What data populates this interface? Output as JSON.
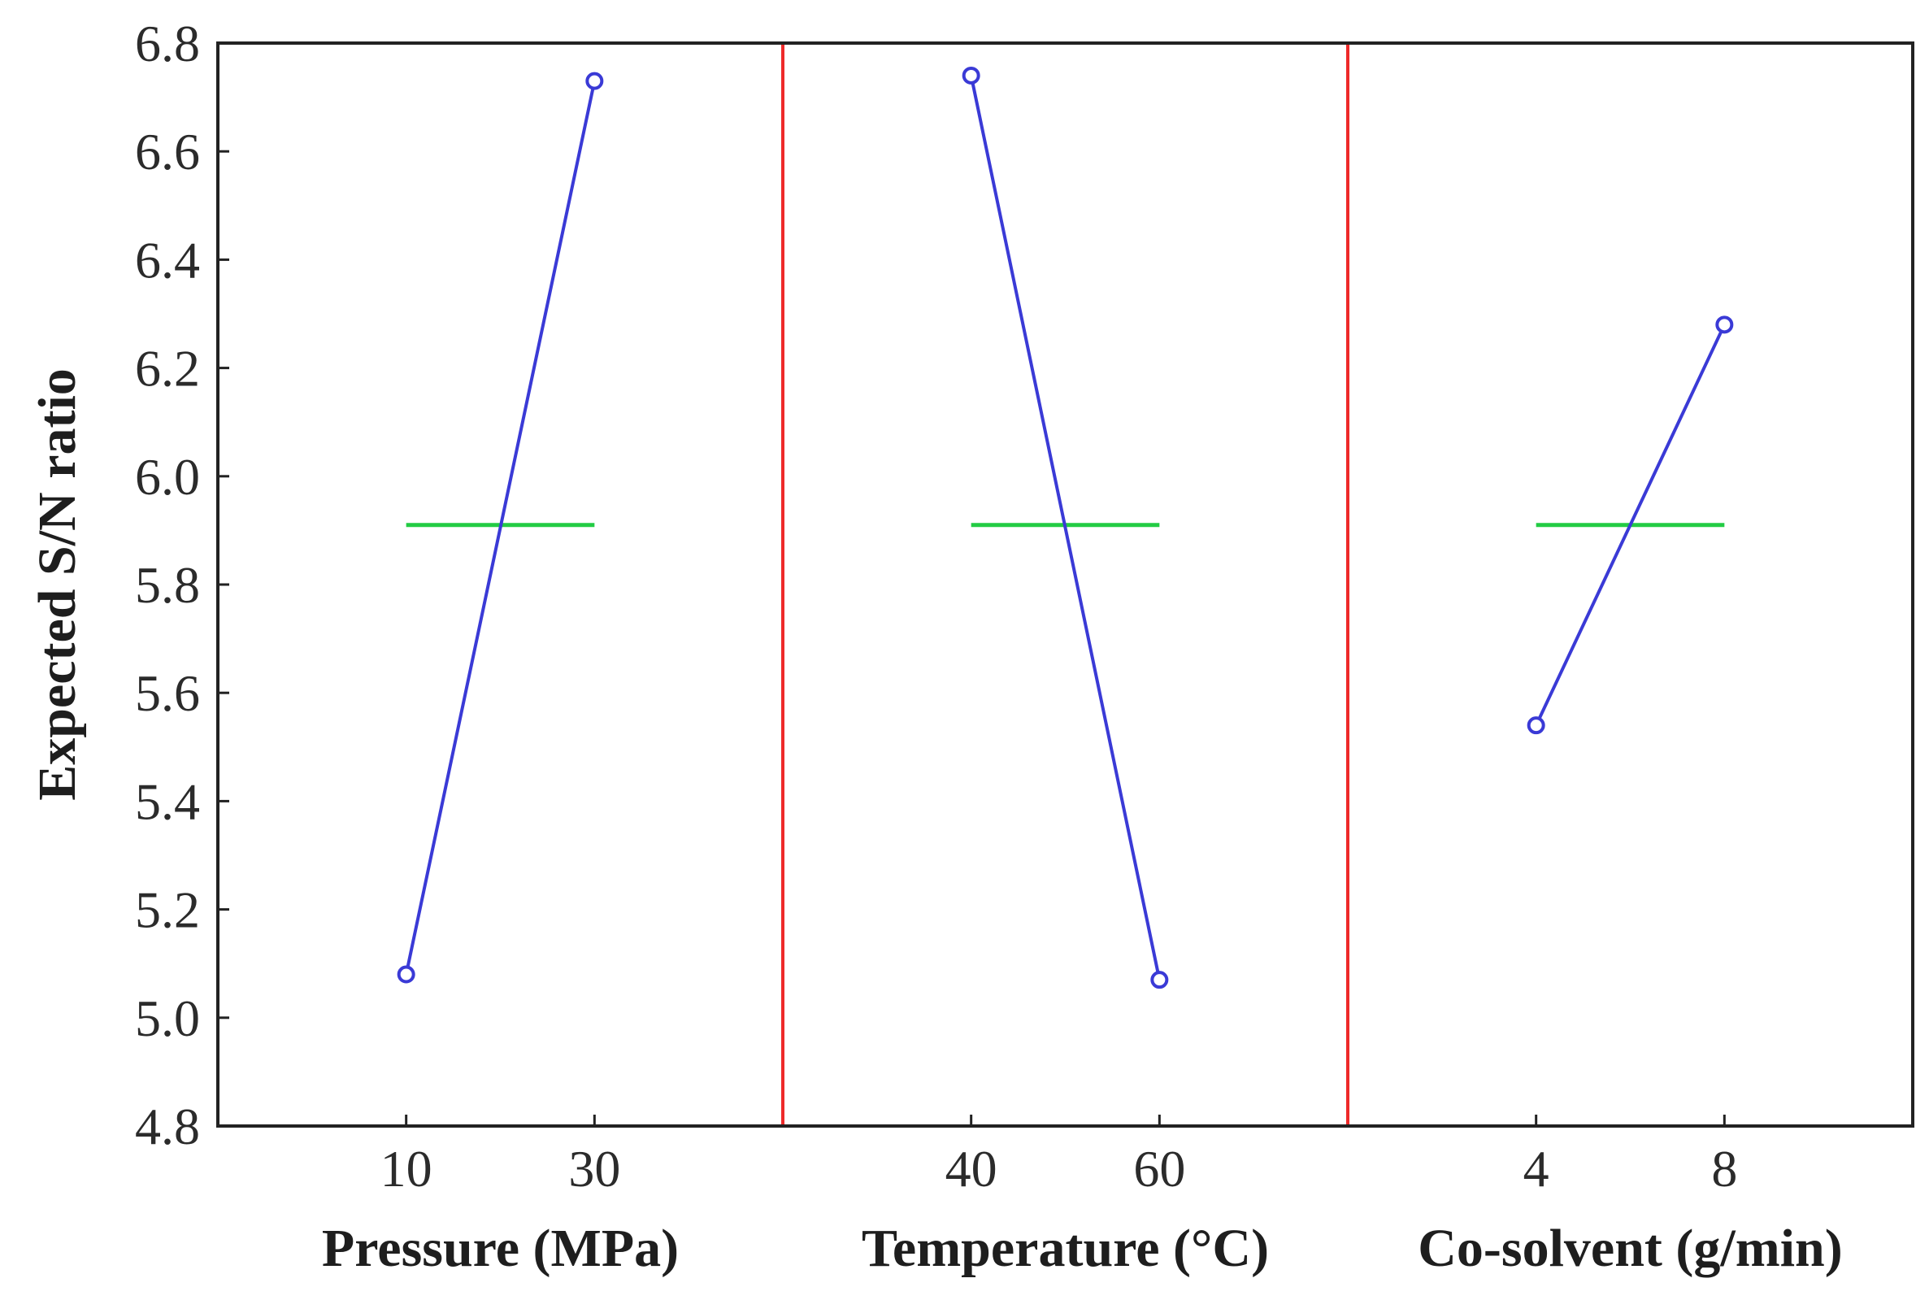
{
  "chart_data": {
    "type": "line",
    "ylabel": "Expected S/N ratio",
    "ylim": [
      4.8,
      6.8
    ],
    "yticks": [
      "4.8",
      "5.0",
      "5.2",
      "5.4",
      "5.6",
      "5.8",
      "6.0",
      "6.2",
      "6.4",
      "6.6",
      "6.8"
    ],
    "grid": false,
    "legend": "none",
    "mean": 5.91,
    "colors": {
      "series": "#3a3ad6",
      "mean_line": "#22cc44",
      "divider": "#ee2a2a",
      "axes": "#222222"
    },
    "panels": [
      {
        "xlabel": "Pressure (MPa)",
        "categories": [
          "10",
          "30"
        ],
        "values": [
          5.08,
          6.73
        ]
      },
      {
        "xlabel": "Temperature (°C)",
        "categories": [
          "40",
          "60"
        ],
        "values": [
          6.74,
          5.07
        ]
      },
      {
        "xlabel": "Co-solvent (g/min)",
        "categories": [
          "4",
          "8"
        ],
        "values": [
          5.54,
          6.28
        ]
      }
    ]
  }
}
